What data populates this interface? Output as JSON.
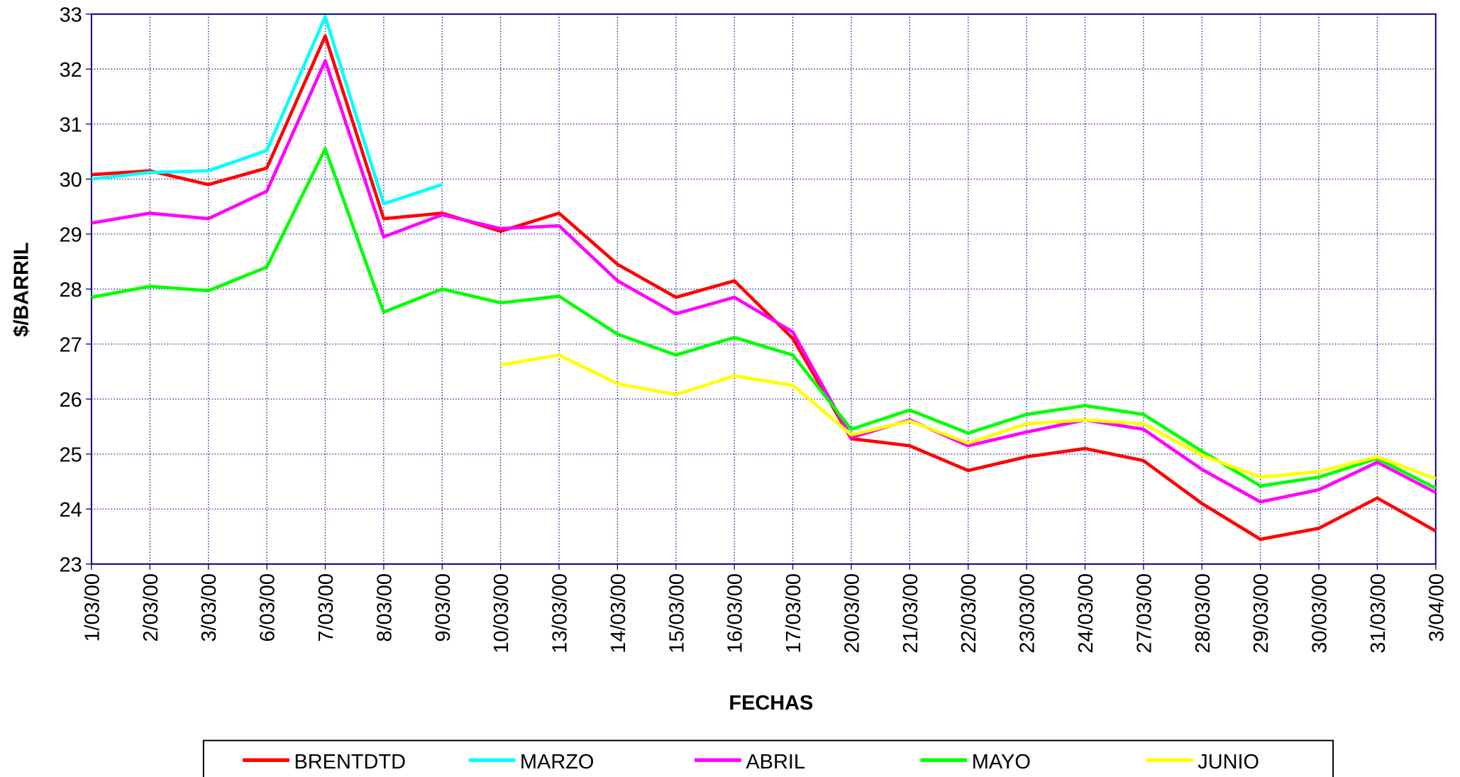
{
  "chart_data": {
    "type": "line",
    "xlabel": "FECHAS",
    "ylabel": "$/BARRIL",
    "categories": [
      "1/03/00",
      "2/03/00",
      "3/03/00",
      "6/03/00",
      "7/03/00",
      "8/03/00",
      "9/03/00",
      "10/03/00",
      "13/03/00",
      "14/03/00",
      "15/03/00",
      "16/03/00",
      "17/03/00",
      "20/03/00",
      "21/03/00",
      "22/03/00",
      "23/03/00",
      "24/03/00",
      "27/03/00",
      "28/03/00",
      "29/03/00",
      "30/03/00",
      "31/03/00",
      "3/04/00"
    ],
    "series": [
      {
        "name": "BRENTDTD",
        "color": "#ff0000",
        "values": [
          30.08,
          30.15,
          29.9,
          30.2,
          32.6,
          29.28,
          29.38,
          29.05,
          29.38,
          28.45,
          27.85,
          28.15,
          27.1,
          25.28,
          25.15,
          24.7,
          24.95,
          25.1,
          24.88,
          24.1,
          23.45,
          23.65,
          24.2,
          23.6
        ]
      },
      {
        "name": "MARZO",
        "color": "#00ffff",
        "values": [
          30.0,
          30.12,
          30.15,
          30.52,
          32.95,
          29.55,
          29.9,
          null,
          null,
          null,
          null,
          null,
          null,
          null,
          null,
          null,
          null,
          null,
          null,
          null,
          null,
          null,
          null,
          null
        ]
      },
      {
        "name": "ABRIL",
        "color": "#ff00ff",
        "values": [
          29.2,
          29.38,
          29.28,
          29.78,
          32.15,
          28.95,
          29.35,
          29.1,
          29.15,
          28.15,
          27.55,
          27.85,
          27.22,
          25.3,
          25.62,
          25.15,
          25.4,
          25.62,
          25.45,
          24.72,
          24.13,
          24.35,
          24.85,
          24.3
        ]
      },
      {
        "name": "MAYO",
        "color": "#00ff00",
        "values": [
          27.85,
          28.05,
          27.97,
          28.4,
          30.55,
          27.58,
          28.0,
          27.75,
          27.87,
          27.18,
          26.8,
          27.12,
          26.8,
          25.45,
          25.8,
          25.38,
          25.72,
          25.88,
          25.72,
          25.05,
          24.42,
          24.58,
          24.92,
          24.38
        ]
      },
      {
        "name": "JUNIO",
        "color": "#ffff00",
        "values": [
          null,
          null,
          null,
          null,
          null,
          null,
          null,
          26.62,
          26.8,
          26.28,
          26.08,
          26.42,
          26.25,
          25.35,
          25.6,
          25.2,
          25.55,
          25.62,
          25.55,
          24.98,
          24.58,
          24.68,
          24.95,
          24.55
        ]
      }
    ],
    "ylim": [
      23,
      33
    ],
    "yticks": [
      23,
      24,
      25,
      26,
      27,
      28,
      29,
      30,
      31,
      32,
      33
    ],
    "grid": true
  }
}
